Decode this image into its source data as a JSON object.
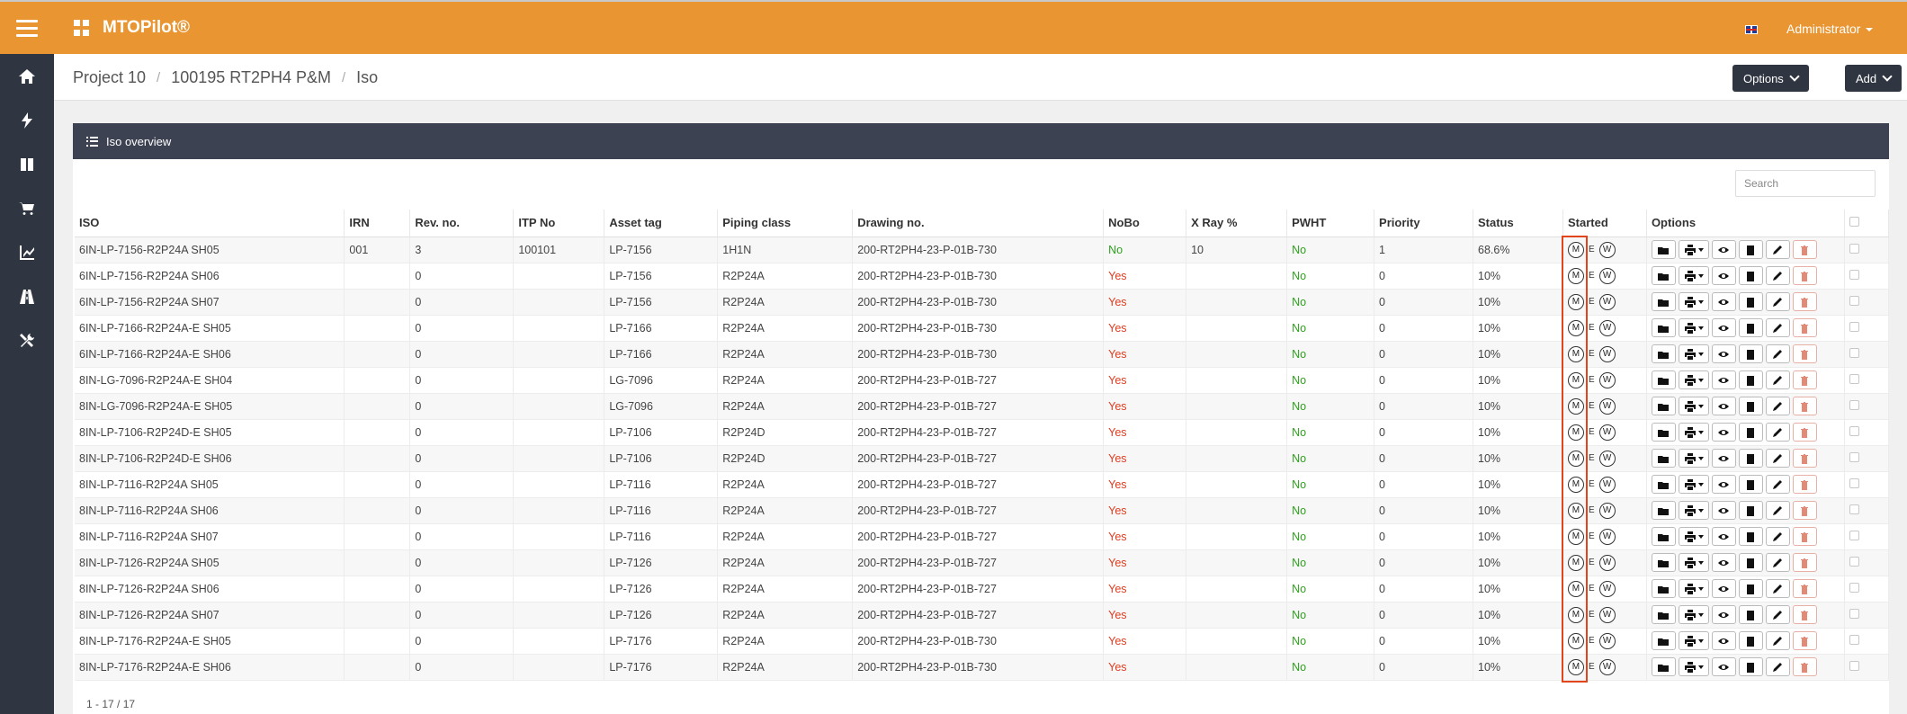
{
  "app": {
    "title": "MTOPilot®",
    "user": "Administrator"
  },
  "breadcrumb": [
    "Project 10",
    "100195 RT2PH4 P&M",
    "Iso"
  ],
  "toolbar": {
    "options_label": "Options",
    "add_label": "Add"
  },
  "panel": {
    "title": "Iso overview",
    "search_placeholder": "Search"
  },
  "columns": [
    "ISO",
    "IRN",
    "Rev. no.",
    "ITP No",
    "Asset tag",
    "Piping class",
    "Drawing no.",
    "NoBo",
    "X Ray %",
    "PWHT",
    "Priority",
    "Status",
    "Started",
    "Options"
  ],
  "started_labels": {
    "m": "M",
    "e": "E",
    "w": "W"
  },
  "colors": {
    "accent": "#e99532",
    "sidebar": "#2f3541",
    "yes": "#e03c1f",
    "no": "#2e9f1d",
    "highlight": "#e2451c"
  },
  "rows": [
    {
      "iso": "6IN-LP-7156-R2P24A SH05",
      "irn": "001",
      "rev": "3",
      "itp": "100101",
      "asset": "LP-7156",
      "piping": "1H1N",
      "drawing": "200-RT2PH4-23-P-01B-730",
      "nobo": "No",
      "xray": "10",
      "pwht": "No",
      "priority": "1",
      "status": "68.6%"
    },
    {
      "iso": "6IN-LP-7156-R2P24A SH06",
      "irn": "",
      "rev": "0",
      "itp": "",
      "asset": "LP-7156",
      "piping": "R2P24A",
      "drawing": "200-RT2PH4-23-P-01B-730",
      "nobo": "Yes",
      "xray": "",
      "pwht": "No",
      "priority": "0",
      "status": "10%"
    },
    {
      "iso": "6IN-LP-7156-R2P24A SH07",
      "irn": "",
      "rev": "0",
      "itp": "",
      "asset": "LP-7156",
      "piping": "R2P24A",
      "drawing": "200-RT2PH4-23-P-01B-730",
      "nobo": "Yes",
      "xray": "",
      "pwht": "No",
      "priority": "0",
      "status": "10%"
    },
    {
      "iso": "6IN-LP-7166-R2P24A-E SH05",
      "irn": "",
      "rev": "0",
      "itp": "",
      "asset": "LP-7166",
      "piping": "R2P24A",
      "drawing": "200-RT2PH4-23-P-01B-730",
      "nobo": "Yes",
      "xray": "",
      "pwht": "No",
      "priority": "0",
      "status": "10%"
    },
    {
      "iso": "6IN-LP-7166-R2P24A-E SH06",
      "irn": "",
      "rev": "0",
      "itp": "",
      "asset": "LP-7166",
      "piping": "R2P24A",
      "drawing": "200-RT2PH4-23-P-01B-730",
      "nobo": "Yes",
      "xray": "",
      "pwht": "No",
      "priority": "0",
      "status": "10%"
    },
    {
      "iso": "8IN-LG-7096-R2P24A-E SH04",
      "irn": "",
      "rev": "0",
      "itp": "",
      "asset": "LG-7096",
      "piping": "R2P24A",
      "drawing": "200-RT2PH4-23-P-01B-727",
      "nobo": "Yes",
      "xray": "",
      "pwht": "No",
      "priority": "0",
      "status": "10%"
    },
    {
      "iso": "8IN-LG-7096-R2P24A-E SH05",
      "irn": "",
      "rev": "0",
      "itp": "",
      "asset": "LG-7096",
      "piping": "R2P24A",
      "drawing": "200-RT2PH4-23-P-01B-727",
      "nobo": "Yes",
      "xray": "",
      "pwht": "No",
      "priority": "0",
      "status": "10%"
    },
    {
      "iso": "8IN-LP-7106-R2P24D-E SH05",
      "irn": "",
      "rev": "0",
      "itp": "",
      "asset": "LP-7106",
      "piping": "R2P24D",
      "drawing": "200-RT2PH4-23-P-01B-727",
      "nobo": "Yes",
      "xray": "",
      "pwht": "No",
      "priority": "0",
      "status": "10%"
    },
    {
      "iso": "8IN-LP-7106-R2P24D-E SH06",
      "irn": "",
      "rev": "0",
      "itp": "",
      "asset": "LP-7106",
      "piping": "R2P24D",
      "drawing": "200-RT2PH4-23-P-01B-727",
      "nobo": "Yes",
      "xray": "",
      "pwht": "No",
      "priority": "0",
      "status": "10%"
    },
    {
      "iso": "8IN-LP-7116-R2P24A SH05",
      "irn": "",
      "rev": "0",
      "itp": "",
      "asset": "LP-7116",
      "piping": "R2P24A",
      "drawing": "200-RT2PH4-23-P-01B-727",
      "nobo": "Yes",
      "xray": "",
      "pwht": "No",
      "priority": "0",
      "status": "10%"
    },
    {
      "iso": "8IN-LP-7116-R2P24A SH06",
      "irn": "",
      "rev": "0",
      "itp": "",
      "asset": "LP-7116",
      "piping": "R2P24A",
      "drawing": "200-RT2PH4-23-P-01B-727",
      "nobo": "Yes",
      "xray": "",
      "pwht": "No",
      "priority": "0",
      "status": "10%"
    },
    {
      "iso": "8IN-LP-7116-R2P24A SH07",
      "irn": "",
      "rev": "0",
      "itp": "",
      "asset": "LP-7116",
      "piping": "R2P24A",
      "drawing": "200-RT2PH4-23-P-01B-727",
      "nobo": "Yes",
      "xray": "",
      "pwht": "No",
      "priority": "0",
      "status": "10%"
    },
    {
      "iso": "8IN-LP-7126-R2P24A SH05",
      "irn": "",
      "rev": "0",
      "itp": "",
      "asset": "LP-7126",
      "piping": "R2P24A",
      "drawing": "200-RT2PH4-23-P-01B-727",
      "nobo": "Yes",
      "xray": "",
      "pwht": "No",
      "priority": "0",
      "status": "10%"
    },
    {
      "iso": "8IN-LP-7126-R2P24A SH06",
      "irn": "",
      "rev": "0",
      "itp": "",
      "asset": "LP-7126",
      "piping": "R2P24A",
      "drawing": "200-RT2PH4-23-P-01B-727",
      "nobo": "Yes",
      "xray": "",
      "pwht": "No",
      "priority": "0",
      "status": "10%"
    },
    {
      "iso": "8IN-LP-7126-R2P24A SH07",
      "irn": "",
      "rev": "0",
      "itp": "",
      "asset": "LP-7126",
      "piping": "R2P24A",
      "drawing": "200-RT2PH4-23-P-01B-727",
      "nobo": "Yes",
      "xray": "",
      "pwht": "No",
      "priority": "0",
      "status": "10%"
    },
    {
      "iso": "8IN-LP-7176-R2P24A-E SH05",
      "irn": "",
      "rev": "0",
      "itp": "",
      "asset": "LP-7176",
      "piping": "R2P24A",
      "drawing": "200-RT2PH4-23-P-01B-730",
      "nobo": "Yes",
      "xray": "",
      "pwht": "No",
      "priority": "0",
      "status": "10%"
    },
    {
      "iso": "8IN-LP-7176-R2P24A-E SH06",
      "irn": "",
      "rev": "0",
      "itp": "",
      "asset": "LP-7176",
      "piping": "R2P24A",
      "drawing": "200-RT2PH4-23-P-01B-730",
      "nobo": "Yes",
      "xray": "",
      "pwht": "No",
      "priority": "0",
      "status": "10%"
    }
  ],
  "pagination": {
    "summary": "1 - 17 / 17"
  }
}
